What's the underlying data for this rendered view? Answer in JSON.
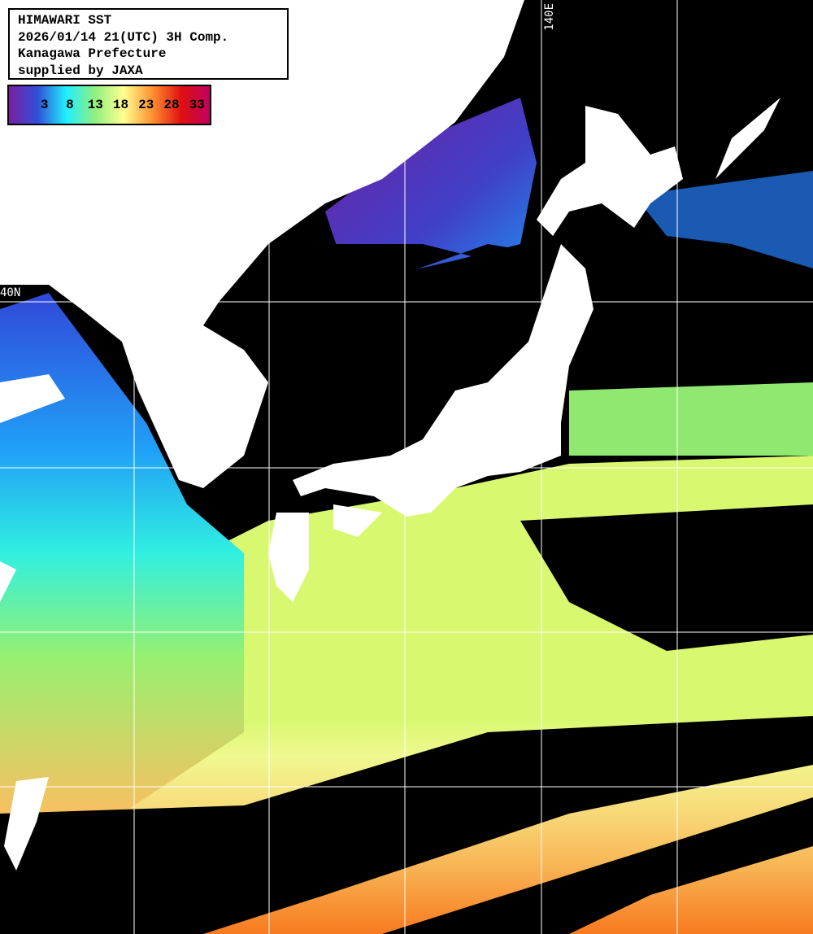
{
  "title": {
    "lines": [
      "HIMAWARI SST",
      "2026/01/14 21(UTC) 3H Comp.",
      "Kanagawa Prefecture",
      "supplied by JAXA"
    ]
  },
  "legend": {
    "ticks": [
      "3",
      "8",
      "13",
      "18",
      "23",
      "28",
      "33"
    ],
    "colors": [
      "#7a1fa0",
      "#3050d8",
      "#20f0ff",
      "#90f080",
      "#ffff90",
      "#ff9030",
      "#e01010",
      "#c00060"
    ]
  },
  "grid": {
    "lon_label": "140E",
    "lat_label": "40N"
  },
  "colors": {
    "land": "#ffffff",
    "cloud": "#000000",
    "gridline": "#ffffff"
  }
}
